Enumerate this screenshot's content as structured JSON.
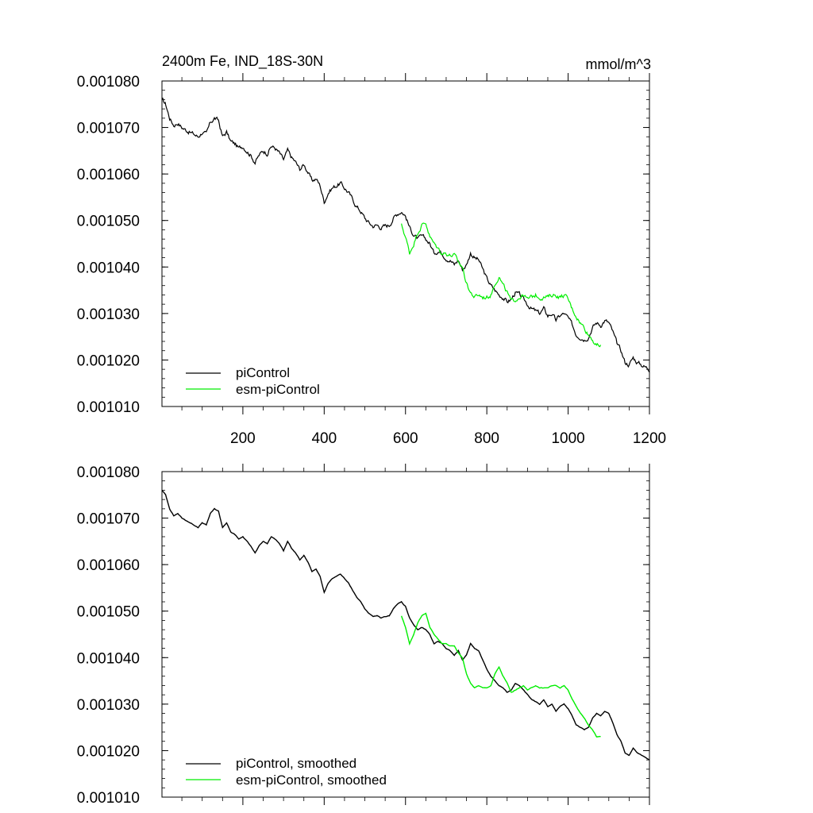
{
  "colors": {
    "piControl": "#000000",
    "esm": "#00ee00",
    "axis": "#000000",
    "background": "#ffffff"
  },
  "chart_data": [
    {
      "type": "line",
      "title_left": "2400m Fe, IND_18S-30N",
      "title_right": "mmol/m^3",
      "xlabel": "",
      "ylabel": "",
      "xlim": [
        1,
        1200
      ],
      "ylim": [
        0.00101,
        0.00108
      ],
      "x_ticks": [
        200,
        400,
        600,
        800,
        1000,
        1200
      ],
      "x_tick_labels": [
        "200",
        "400",
        "600",
        "800",
        "1000",
        "1200"
      ],
      "y_ticks": [
        0.00101,
        0.00102,
        0.00103,
        0.00104,
        0.00105,
        0.00106,
        0.00107,
        0.00108
      ],
      "y_tick_labels": [
        "0.001010",
        "0.001020",
        "0.001030",
        "0.001040",
        "0.001050",
        "0.001060",
        "0.001070",
        "0.001080"
      ],
      "grid": false,
      "legend": "bottom-left",
      "series": [
        {
          "name": "piControl",
          "color": "#000000",
          "x": [
            1,
            10,
            20,
            30,
            40,
            50,
            60,
            70,
            80,
            90,
            100,
            110,
            120,
            130,
            140,
            150,
            160,
            170,
            180,
            190,
            200,
            210,
            220,
            230,
            240,
            250,
            260,
            270,
            280,
            290,
            300,
            310,
            320,
            330,
            340,
            350,
            360,
            370,
            380,
            390,
            400,
            410,
            420,
            430,
            440,
            450,
            460,
            470,
            480,
            490,
            500,
            510,
            520,
            530,
            540,
            550,
            560,
            570,
            580,
            590,
            600,
            610,
            620,
            630,
            640,
            650,
            660,
            670,
            680,
            690,
            700,
            710,
            720,
            730,
            740,
            750,
            760,
            770,
            780,
            790,
            800,
            810,
            820,
            830,
            840,
            850,
            860,
            870,
            880,
            890,
            900,
            910,
            920,
            930,
            940,
            950,
            960,
            970,
            980,
            990,
            1000,
            1010,
            1020,
            1030,
            1040,
            1050,
            1060,
            1070,
            1080,
            1090,
            1100,
            1110,
            1120,
            1130,
            1140,
            1150,
            1160,
            1170,
            1180,
            1190,
            1200
          ],
          "values": [
            0.001076,
            0.001075,
            0.001072,
            0.0010705,
            0.001071,
            0.00107,
            0.0010695,
            0.001069,
            0.0010685,
            0.001068,
            0.001069,
            0.0010685,
            0.001071,
            0.001072,
            0.0010715,
            0.001068,
            0.001069,
            0.001067,
            0.0010665,
            0.0010655,
            0.001066,
            0.001065,
            0.001064,
            0.0010625,
            0.001064,
            0.001065,
            0.0010645,
            0.001066,
            0.0010655,
            0.0010645,
            0.001063,
            0.001065,
            0.0010635,
            0.0010625,
            0.001061,
            0.001062,
            0.0010605,
            0.0010585,
            0.001059,
            0.0010575,
            0.001054,
            0.001056,
            0.001057,
            0.0010575,
            0.001058,
            0.001057,
            0.001056,
            0.0010545,
            0.001053,
            0.001052,
            0.0010505,
            0.0010495,
            0.0010488,
            0.001049,
            0.0010485,
            0.0010488,
            0.001049,
            0.0010505,
            0.0010515,
            0.001052,
            0.001051,
            0.0010485,
            0.001047,
            0.001046,
            0.0010465,
            0.001046,
            0.001045,
            0.001043,
            0.0010435,
            0.001043,
            0.001042,
            0.0010415,
            0.0010405,
            0.0010415,
            0.0010395,
            0.0010405,
            0.001043,
            0.001042,
            0.0010415,
            0.0010395,
            0.0010375,
            0.001036,
            0.001035,
            0.001034,
            0.0010335,
            0.0010325,
            0.001033,
            0.0010345,
            0.001034,
            0.001033,
            0.001032,
            0.001031,
            0.0010305,
            0.00103,
            0.001031,
            0.0010295,
            0.00103,
            0.0010285,
            0.0010295,
            0.00103,
            0.001029,
            0.0010275,
            0.0010255,
            0.001025,
            0.0010245,
            0.001025,
            0.001027,
            0.001028,
            0.0010275,
            0.0010285,
            0.001028,
            0.001026,
            0.0010235,
            0.001022,
            0.0010195,
            0.001019,
            0.0010205,
            0.0010195,
            0.001019,
            0.0010185,
            0.001018
          ]
        },
        {
          "name": "esm-piControl",
          "color": "#00ee00",
          "x": [
            590,
            600,
            610,
            620,
            630,
            640,
            650,
            660,
            670,
            680,
            690,
            700,
            710,
            720,
            730,
            740,
            750,
            760,
            770,
            780,
            790,
            800,
            810,
            820,
            830,
            840,
            850,
            860,
            870,
            880,
            890,
            900,
            910,
            920,
            930,
            940,
            950,
            960,
            970,
            980,
            990,
            1000,
            1010,
            1020,
            1030,
            1040,
            1050,
            1060,
            1070,
            1080
          ],
          "values": [
            0.001049,
            0.0010465,
            0.001043,
            0.001045,
            0.0010475,
            0.001049,
            0.0010495,
            0.0010465,
            0.001045,
            0.001044,
            0.001043,
            0.001043,
            0.0010425,
            0.0010425,
            0.001041,
            0.00104,
            0.0010365,
            0.0010345,
            0.0010335,
            0.001034,
            0.0010335,
            0.0010335,
            0.001034,
            0.0010365,
            0.001038,
            0.001036,
            0.0010345,
            0.0010325,
            0.001033,
            0.0010335,
            0.001034,
            0.001033,
            0.0010335,
            0.001034,
            0.0010335,
            0.0010335,
            0.0010335,
            0.001034,
            0.001034,
            0.0010335,
            0.001034,
            0.001033,
            0.001031,
            0.0010295,
            0.001028,
            0.001027,
            0.0010255,
            0.0010245,
            0.001023,
            0.001023
          ]
        }
      ],
      "legend_entries": [
        "piControl",
        "esm-piControl"
      ]
    },
    {
      "type": "line",
      "title_left": "",
      "title_right": "",
      "xlabel": "",
      "ylabel": "",
      "xlim": [
        1,
        1200
      ],
      "ylim": [
        0.00101,
        0.00108
      ],
      "x_ticks": [
        200,
        400,
        600,
        800,
        1000,
        1200
      ],
      "x_tick_labels": [],
      "y_ticks": [
        0.00101,
        0.00102,
        0.00103,
        0.00104,
        0.00105,
        0.00106,
        0.00107,
        0.00108
      ],
      "y_tick_labels": [
        "0.001010",
        "0.001020",
        "0.001030",
        "0.001040",
        "0.001050",
        "0.001060",
        "0.001070",
        "0.001080"
      ],
      "grid": false,
      "legend": "bottom-left",
      "smooth": true,
      "series": [
        {
          "name": "piControl, smoothed",
          "color": "#000000",
          "source_series": 0
        },
        {
          "name": "esm-piControl, smoothed",
          "color": "#00ee00",
          "source_series": 1
        }
      ],
      "legend_entries": [
        "piControl, smoothed",
        "esm-piControl, smoothed"
      ]
    }
  ]
}
